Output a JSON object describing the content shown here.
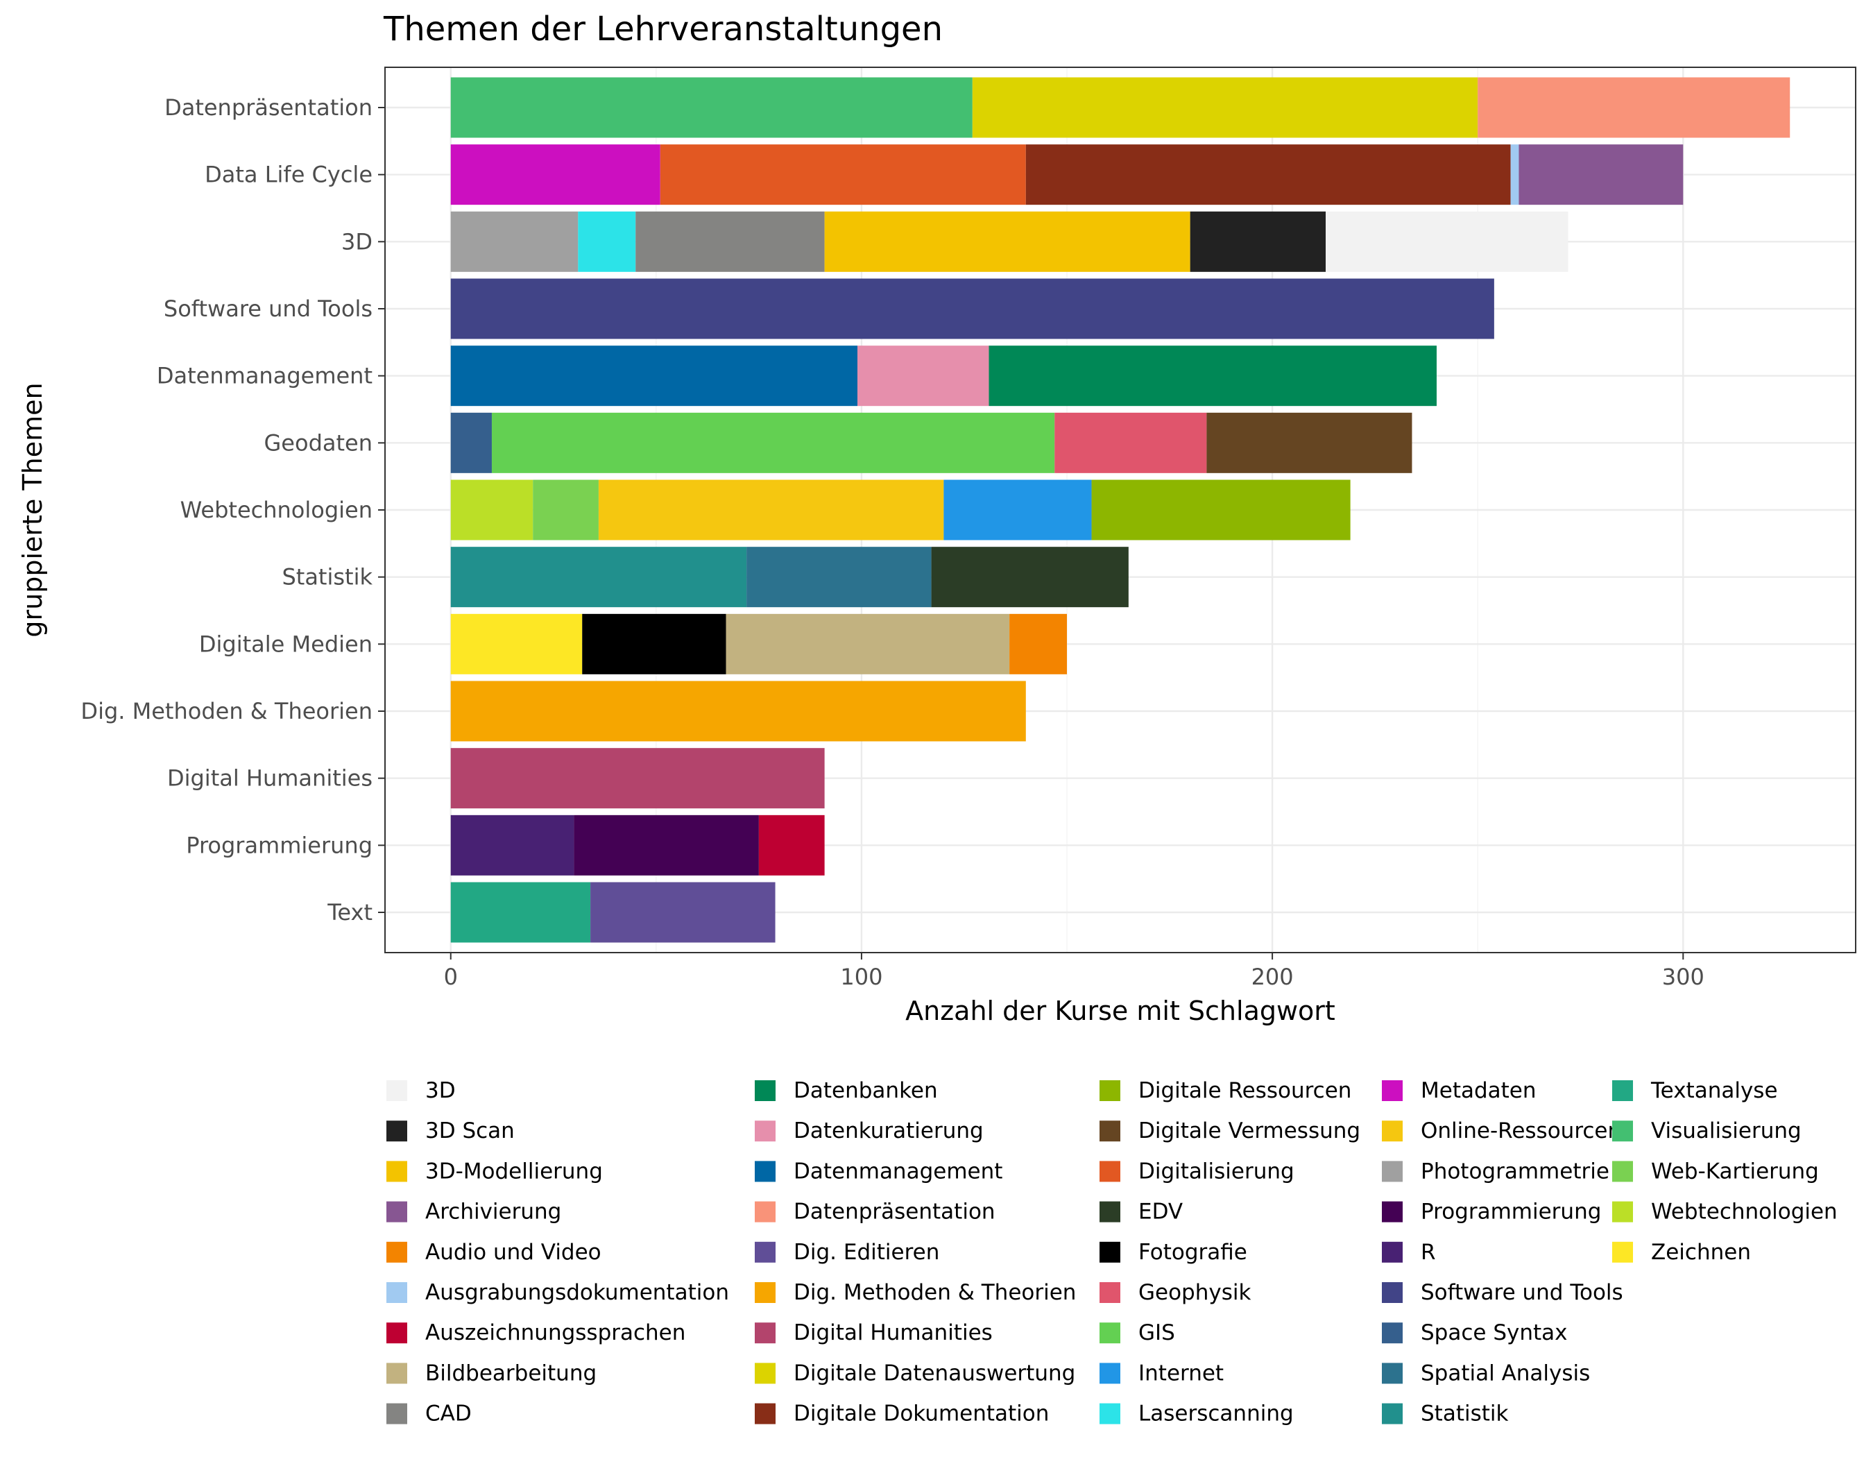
{
  "chart_data": {
    "type": "bar",
    "orientation": "horizontal",
    "stacked": true,
    "title": "Themen der Lehrveranstaltungen",
    "xlabel": "Anzahl der Kurse mit Schlagwort",
    "ylabel": "gruppierte Themen",
    "xlim": [
      -16,
      342
    ],
    "xticks": [
      0,
      100,
      200,
      300
    ],
    "grid": true,
    "legend_position": "bottom",
    "categories": [
      {
        "name": "Datenpräsentation",
        "segments": [
          {
            "keyword": "Visualisierung",
            "value": 127
          },
          {
            "keyword": "Digitale Datenauswertung",
            "value": 123
          },
          {
            "keyword": "Datenpräsentation",
            "value": 76
          }
        ]
      },
      {
        "name": "Data Life Cycle",
        "segments": [
          {
            "keyword": "Metadaten",
            "value": 51
          },
          {
            "keyword": "Digitalisierung",
            "value": 89
          },
          {
            "keyword": "Digitale Dokumentation",
            "value": 118
          },
          {
            "keyword": "Ausgrabungsdokumentation",
            "value": 2
          },
          {
            "keyword": "Archivierung",
            "value": 40
          }
        ]
      },
      {
        "name": "3D",
        "segments": [
          {
            "keyword": "Photogrammetrie",
            "value": 31
          },
          {
            "keyword": "Laserscanning",
            "value": 14
          },
          {
            "keyword": "CAD",
            "value": 46
          },
          {
            "keyword": "3D-Modellierung",
            "value": 89
          },
          {
            "keyword": "3D Scan",
            "value": 33
          },
          {
            "keyword": "3D",
            "value": 59
          }
        ]
      },
      {
        "name": "Software und Tools",
        "segments": [
          {
            "keyword": "Software und Tools",
            "value": 254
          }
        ]
      },
      {
        "name": "Datenmanagement",
        "segments": [
          {
            "keyword": "Datenmanagement",
            "value": 99
          },
          {
            "keyword": "Datenkuratierung",
            "value": 32
          },
          {
            "keyword": "Datenbanken",
            "value": 109
          }
        ]
      },
      {
        "name": "Geodaten",
        "segments": [
          {
            "keyword": "Space Syntax",
            "value": 10
          },
          {
            "keyword": "GIS",
            "value": 137
          },
          {
            "keyword": "Geophysik",
            "value": 37
          },
          {
            "keyword": "Digitale Vermessung",
            "value": 50
          }
        ]
      },
      {
        "name": "Webtechnologien",
        "segments": [
          {
            "keyword": "Webtechnologien",
            "value": 20
          },
          {
            "keyword": "Web-Kartierung",
            "value": 16
          },
          {
            "keyword": "Online-Ressourcen",
            "value": 84
          },
          {
            "keyword": "Internet",
            "value": 36
          },
          {
            "keyword": "Digitale Ressourcen",
            "value": 63
          }
        ]
      },
      {
        "name": "Statistik",
        "segments": [
          {
            "keyword": "Statistik",
            "value": 72
          },
          {
            "keyword": "Spatial Analysis",
            "value": 45
          },
          {
            "keyword": "EDV",
            "value": 48
          }
        ]
      },
      {
        "name": "Digitale Medien",
        "segments": [
          {
            "keyword": "Zeichnen",
            "value": 32
          },
          {
            "keyword": "Fotografie",
            "value": 35
          },
          {
            "keyword": "Bildbearbeitung",
            "value": 69
          },
          {
            "keyword": "Audio und Video",
            "value": 14
          }
        ]
      },
      {
        "name": "Dig. Methoden & Theorien",
        "segments": [
          {
            "keyword": "Dig. Methoden & Theorien",
            "value": 140
          }
        ]
      },
      {
        "name": "Digital Humanities",
        "segments": [
          {
            "keyword": "Digital Humanities",
            "value": 91
          }
        ]
      },
      {
        "name": "Programmierung",
        "segments": [
          {
            "keyword": "R",
            "value": 30
          },
          {
            "keyword": "Programmierung",
            "value": 45
          },
          {
            "keyword": "Auszeichnungssprachen",
            "value": 16
          }
        ]
      },
      {
        "name": "Text",
        "segments": [
          {
            "keyword": "Textanalyse",
            "value": 34
          },
          {
            "keyword": "Dig. Editieren",
            "value": 45
          }
        ]
      }
    ],
    "legend": [
      {
        "label": "3D",
        "color": "#f2f2f2"
      },
      {
        "label": "3D Scan",
        "color": "#222222"
      },
      {
        "label": "3D-Modellierung",
        "color": "#f3c300"
      },
      {
        "label": "Archivierung",
        "color": "#875692"
      },
      {
        "label": "Audio und Video",
        "color": "#f38400"
      },
      {
        "label": "Ausgrabungsdokumentation",
        "color": "#a1caf1"
      },
      {
        "label": "Auszeichnungssprachen",
        "color": "#be0032"
      },
      {
        "label": "Bildbearbeitung",
        "color": "#c2b280"
      },
      {
        "label": "CAD",
        "color": "#848482"
      },
      {
        "label": "Datenbanken",
        "color": "#008856"
      },
      {
        "label": "Datenkuratierung",
        "color": "#e68fac"
      },
      {
        "label": "Datenmanagement",
        "color": "#0067a5"
      },
      {
        "label": "Datenpräsentation",
        "color": "#f99379"
      },
      {
        "label": "Dig. Editieren",
        "color": "#604e97"
      },
      {
        "label": "Dig. Methoden & Theorien",
        "color": "#f6a600"
      },
      {
        "label": "Digital Humanities",
        "color": "#b3446c"
      },
      {
        "label": "Digitale Datenauswertung",
        "color": "#dcd300"
      },
      {
        "label": "Digitale Dokumentation",
        "color": "#882d17"
      },
      {
        "label": "Digitale Ressourcen",
        "color": "#8db600"
      },
      {
        "label": "Digitale Vermessung",
        "color": "#654522"
      },
      {
        "label": "Digitalisierung",
        "color": "#e25822"
      },
      {
        "label": "EDV",
        "color": "#2b3d26"
      },
      {
        "label": "Fotografie",
        "color": "#000000"
      },
      {
        "label": "Geophysik",
        "color": "#e0556c"
      },
      {
        "label": "GIS",
        "color": "#63d052"
      },
      {
        "label": "Internet",
        "color": "#2196e6"
      },
      {
        "label": "Laserscanning",
        "color": "#2ce3e8"
      },
      {
        "label": "Metadaten",
        "color": "#cc0fc0"
      },
      {
        "label": "Online-Ressourcen",
        "color": "#f5c710"
      },
      {
        "label": "Photogrammetrie",
        "color": "#a0a0a0"
      },
      {
        "label": "Programmierung",
        "color": "#440154"
      },
      {
        "label": "R",
        "color": "#482173"
      },
      {
        "label": "Software und Tools",
        "color": "#414487"
      },
      {
        "label": "Space Syntax",
        "color": "#355f8d"
      },
      {
        "label": "Spatial Analysis",
        "color": "#2c728e"
      },
      {
        "label": "Statistik",
        "color": "#21908d"
      },
      {
        "label": "Textanalyse",
        "color": "#22a884"
      },
      {
        "label": "Visualisierung",
        "color": "#43bf71"
      },
      {
        "label": "Web-Kartierung",
        "color": "#7ad151"
      },
      {
        "label": "Webtechnologien",
        "color": "#bbdf27"
      },
      {
        "label": "Zeichnen",
        "color": "#fde725"
      }
    ]
  }
}
